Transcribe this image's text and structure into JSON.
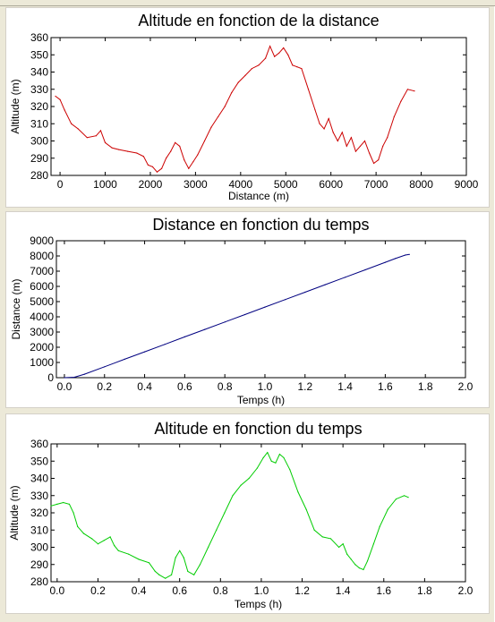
{
  "chart_data": [
    {
      "type": "line",
      "title": "Altitude en fonction de la distance",
      "xlabel": "Distance (m)",
      "ylabel": "Altitude (m)",
      "xlim": [
        -200,
        9000
      ],
      "ylim": [
        280,
        360
      ],
      "xticks": [
        0,
        1000,
        2000,
        3000,
        4000,
        5000,
        6000,
        7000,
        8000,
        9000
      ],
      "yticks": [
        280,
        290,
        300,
        310,
        320,
        330,
        340,
        350,
        360
      ],
      "xtick_labels": [
        "0",
        "1000",
        "2000",
        "3000",
        "4000",
        "5000",
        "6000",
        "7000",
        "8000",
        "9000"
      ],
      "ytick_labels": [
        "280",
        "290",
        "300",
        "310",
        "320",
        "330",
        "340",
        "350",
        "360"
      ],
      "grid": false,
      "series": [
        {
          "color": "#cc0000",
          "x": [
            -100,
            0,
            100,
            250,
            400,
            600,
            800,
            900,
            1000,
            1150,
            1300,
            1500,
            1700,
            1850,
            1950,
            2050,
            2150,
            2250,
            2350,
            2450,
            2550,
            2650,
            2750,
            2850,
            2950,
            3050,
            3200,
            3350,
            3500,
            3650,
            3800,
            3950,
            4100,
            4250,
            4400,
            4550,
            4650,
            4750,
            4850,
            4950,
            5050,
            5150,
            5250,
            5350,
            5500,
            5650,
            5750,
            5850,
            5950,
            6050,
            6150,
            6250,
            6350,
            6450,
            6550,
            6650,
            6750,
            6850,
            6950,
            7050,
            7150,
            7250,
            7400,
            7550,
            7700,
            7850
          ],
          "values": [
            326,
            324,
            318,
            310,
            307,
            302,
            303,
            306,
            299,
            296,
            295,
            294,
            293,
            291,
            286,
            285,
            282,
            284,
            290,
            294,
            299,
            297,
            289,
            284,
            288,
            292,
            300,
            308,
            314,
            320,
            328,
            334,
            338,
            342,
            344,
            348,
            355,
            349,
            351,
            354,
            350,
            344,
            343,
            342,
            330,
            318,
            310,
            307,
            313,
            305,
            300,
            305,
            297,
            302,
            294,
            297,
            300,
            293,
            287,
            289,
            297,
            302,
            314,
            323,
            330,
            329
          ]
        }
      ]
    },
    {
      "type": "line",
      "title": "Distance en fonction du temps",
      "xlabel": "Temps (h)",
      "ylabel": "Distance (m)",
      "xlim": [
        -0.04,
        2.0
      ],
      "ylim": [
        0,
        9000
      ],
      "xticks": [
        0.0,
        0.2,
        0.4,
        0.6,
        0.8,
        1.0,
        1.2,
        1.4,
        1.6,
        1.8,
        2.0
      ],
      "yticks": [
        0,
        1000,
        2000,
        3000,
        4000,
        5000,
        6000,
        7000,
        8000,
        9000
      ],
      "xtick_labels": [
        "0.0",
        "0.2",
        "0.4",
        "0.6",
        "0.8",
        "1.0",
        "1.2",
        "1.4",
        "1.6",
        "1.8",
        "2.0"
      ],
      "ytick_labels": [
        "0",
        "1000",
        "2000",
        "3000",
        "4000",
        "5000",
        "6000",
        "7000",
        "8000",
        "9000"
      ],
      "grid": false,
      "series": [
        {
          "color": "#000080",
          "x": [
            0.0,
            0.05,
            0.1,
            0.2,
            0.3,
            0.4,
            0.5,
            0.6,
            0.7,
            0.8,
            0.9,
            1.0,
            1.1,
            1.2,
            1.3,
            1.4,
            1.5,
            1.6,
            1.65,
            1.7,
            1.72
          ],
          "values": [
            0,
            30,
            230,
            720,
            1210,
            1700,
            2190,
            2680,
            3170,
            3660,
            4150,
            4640,
            5130,
            5620,
            6110,
            6600,
            7090,
            7580,
            7830,
            8060,
            8100
          ]
        }
      ]
    },
    {
      "type": "line",
      "title": "Altitude en fonction du temps",
      "xlabel": "Temps (h)",
      "ylabel": "Altitude (m)",
      "xlim": [
        -0.03,
        2.0
      ],
      "ylim": [
        280,
        360
      ],
      "xticks": [
        0.0,
        0.2,
        0.4,
        0.6,
        0.8,
        1.0,
        1.2,
        1.4,
        1.6,
        1.8,
        2.0
      ],
      "yticks": [
        280,
        290,
        300,
        310,
        320,
        330,
        340,
        350,
        360
      ],
      "xtick_labels": [
        "0.0",
        "0.2",
        "0.4",
        "0.6",
        "0.8",
        "1.0",
        "1.2",
        "1.4",
        "1.6",
        "1.8",
        "2.0"
      ],
      "ytick_labels": [
        "280",
        "290",
        "300",
        "310",
        "320",
        "330",
        "340",
        "350",
        "360"
      ],
      "grid": false,
      "series": [
        {
          "color": "#00cc00",
          "x": [
            -0.03,
            0.0,
            0.03,
            0.06,
            0.08,
            0.1,
            0.13,
            0.17,
            0.2,
            0.23,
            0.26,
            0.28,
            0.3,
            0.35,
            0.4,
            0.45,
            0.48,
            0.5,
            0.53,
            0.56,
            0.58,
            0.6,
            0.62,
            0.64,
            0.67,
            0.7,
            0.74,
            0.78,
            0.82,
            0.86,
            0.9,
            0.94,
            0.98,
            1.01,
            1.03,
            1.05,
            1.07,
            1.09,
            1.11,
            1.14,
            1.18,
            1.22,
            1.26,
            1.3,
            1.34,
            1.38,
            1.4,
            1.42,
            1.44,
            1.46,
            1.48,
            1.5,
            1.52,
            1.55,
            1.58,
            1.62,
            1.66,
            1.7,
            1.72
          ],
          "values": [
            324,
            325,
            326,
            325,
            320,
            312,
            308,
            305,
            302,
            304,
            306,
            301,
            298,
            296,
            293,
            291,
            286,
            284,
            282,
            284,
            294,
            298,
            294,
            286,
            284,
            290,
            300,
            310,
            320,
            330,
            336,
            340,
            346,
            352,
            355,
            350,
            349,
            354,
            352,
            345,
            332,
            322,
            310,
            306,
            305,
            300,
            302,
            296,
            293,
            290,
            288,
            287,
            292,
            302,
            312,
            322,
            328,
            330,
            329
          ]
        }
      ]
    }
  ]
}
